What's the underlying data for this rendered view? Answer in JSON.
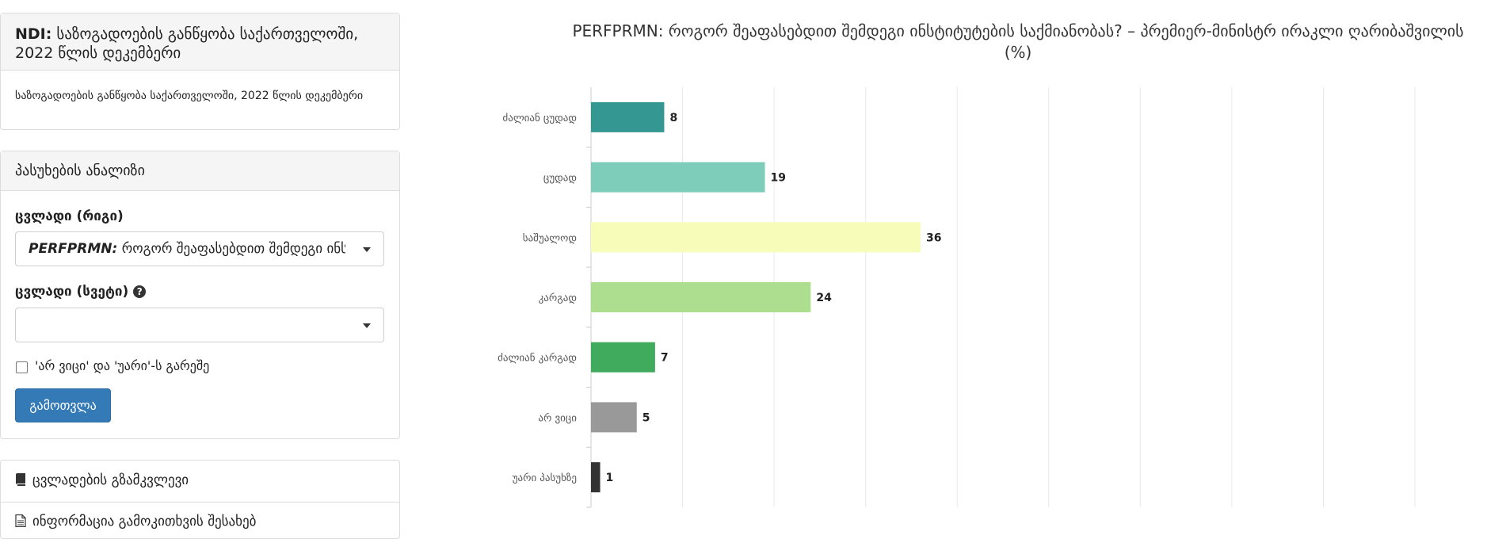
{
  "survey": {
    "title_prefix": "NDI:",
    "title_rest": "საზოგადოების განწყობა საქართველოში, 2022 წლის დეკემბერი",
    "subtitle": "საზოგადოების განწყობა საქართველოში, 2022 წლის დეკემბერი"
  },
  "analysis": {
    "header": "პასუხების ანალიზი",
    "row_var_label": "ცვლადი (რიგი)",
    "row_var_value_code": "PERFPRMN:",
    "row_var_value_text": "როგორ შეაფასებდით შემდეგი ინსტიტ",
    "col_var_label": "ცვლადი (სვეტი)",
    "col_var_help_icon": "question-circle-icon",
    "col_var_value": "",
    "exclude_checkbox_label": "'არ ვიცი' და 'უარი'-ს გარეშე",
    "exclude_checked": false,
    "calculate_button": "გამოთვლა"
  },
  "links": {
    "codebook": "ცვლადების გზამკვლევი",
    "codebook_icon": "book-icon",
    "survey_info": "ინფორმაცია გამოკითხვის შესახებ",
    "survey_info_icon": "file-icon"
  },
  "chart_data": {
    "type": "bar",
    "orientation": "horizontal",
    "title": "PERFPRMN: როგორ შეაფასებდით შემდეგი ინსტიტუტების საქმიანობას? – პრემიერ-მინისტრ ირაკლი ღარიბაშვილის (%)",
    "categories": [
      "ძალიან ცუდად",
      "ცუდად",
      "საშუალოდ",
      "კარგად",
      "ძალიან კარგად",
      "არ ვიცი",
      "უარი პასუხზე"
    ],
    "values": [
      8,
      19,
      36,
      24,
      7,
      5,
      1
    ],
    "colors": [
      "#359791",
      "#7ecdbb",
      "#f7fcb9",
      "#addd8e",
      "#41ab5d",
      "#999999",
      "#333333"
    ],
    "xlim": [
      0,
      90
    ],
    "grid": true
  }
}
